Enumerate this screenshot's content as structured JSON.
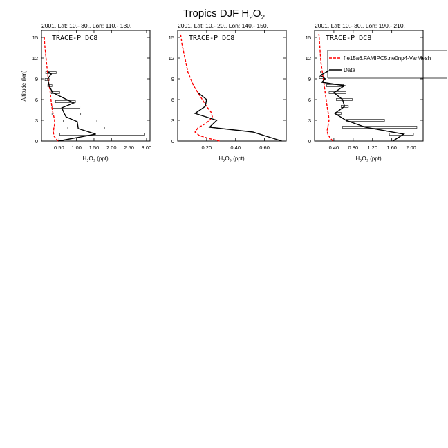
{
  "figure": {
    "title_main": "Tropics DJF H",
    "title_sub": "2",
    "title_main2": "O",
    "title_sub2": "2",
    "ylabel": "Altitude (km)",
    "xlabel_main": "H",
    "xlabel_sub": "2",
    "xlabel_main2": "O",
    "xlabel_sub2": "2",
    "xlabel_unit": " (ppt)",
    "legend_model": "f.e15a6.FAMIPC5.ne0np4-VarMesh",
    "legend_data": "Data",
    "colors": {
      "model": "#ff0000",
      "data": "#000000"
    }
  },
  "chart_data": [
    {
      "type": "line",
      "subtitle": "2001, Lat: 10.- 30., Lon: 110.- 130.",
      "campaign": "TRACE-P DC8",
      "xlim": [
        0.0,
        3.1
      ],
      "ylim": [
        0,
        16
      ],
      "xticks": [
        "0.50",
        "1.00",
        "1.50",
        "2.00",
        "2.50",
        "3.00"
      ],
      "xtick_values": [
        0.5,
        1.0,
        1.5,
        2.0,
        2.5,
        3.0
      ],
      "yticks": [
        "0",
        "3",
        "6",
        "9",
        "12",
        "15"
      ],
      "ytick_values": [
        0,
        3,
        6,
        9,
        12,
        15
      ],
      "model": {
        "x": [
          0.48,
          0.42,
          0.36,
          0.34,
          0.35,
          0.38,
          0.37,
          0.33,
          0.3,
          0.28,
          0.26,
          0.24,
          0.21,
          0.19,
          0.17,
          0.15,
          0.13,
          0.11,
          0.09,
          0.08
        ],
        "y": [
          0.0,
          0.3,
          0.7,
          1.2,
          1.8,
          2.5,
          3.2,
          4.0,
          4.8,
          5.6,
          6.5,
          7.4,
          8.3,
          9.2,
          10.1,
          11.0,
          12.0,
          13.0,
          14.0,
          15.0
        ]
      },
      "data": {
        "x": [
          0.48,
          1.55,
          1.05,
          1.02,
          0.7,
          0.65,
          0.58,
          0.92,
          0.72,
          0.32,
          0.22,
          0.18,
          0.28,
          0.2
        ],
        "y": [
          0.0,
          1.0,
          1.8,
          2.8,
          3.5,
          4.0,
          4.8,
          5.5,
          6.0,
          7.0,
          8.0,
          9.0,
          9.7,
          10.0
        ]
      },
      "bars": [
        {
          "y": 1.0,
          "min": 0.52,
          "max": 2.95
        },
        {
          "y": 1.9,
          "min": 0.75,
          "max": 1.8
        },
        {
          "y": 2.9,
          "min": 0.62,
          "max": 1.58
        },
        {
          "y": 3.9,
          "min": 0.3,
          "max": 1.12
        },
        {
          "y": 4.9,
          "min": 0.3,
          "max": 1.1
        },
        {
          "y": 5.7,
          "min": 0.4,
          "max": 0.97
        },
        {
          "y": 7.0,
          "min": 0.28,
          "max": 0.52
        },
        {
          "y": 8.0,
          "min": 0.18,
          "max": 0.3
        },
        {
          "y": 8.9,
          "min": 0.1,
          "max": 0.22
        },
        {
          "y": 9.9,
          "min": 0.12,
          "max": 0.42
        }
      ]
    },
    {
      "type": "line",
      "subtitle": "2001, Lat: 10.- 20., Lon: 140.- 150.",
      "campaign": "TRACE-P DC8",
      "xlim": [
        0.0,
        0.75
      ],
      "ylim": [
        0,
        16
      ],
      "xticks": [
        "0.20",
        "0.40",
        "0.60"
      ],
      "xtick_values": [
        0.2,
        0.4,
        0.6
      ],
      "yticks": [
        "0",
        "3",
        "6",
        "9",
        "12",
        "15"
      ],
      "ytick_values": [
        0,
        3,
        6,
        9,
        12,
        15
      ],
      "model": {
        "x": [
          0.29,
          0.21,
          0.15,
          0.12,
          0.14,
          0.19,
          0.22,
          0.24,
          0.23,
          0.2,
          0.17,
          0.14,
          0.11,
          0.09,
          0.07,
          0.06,
          0.05,
          0.04,
          0.03,
          0.02
        ],
        "y": [
          0.0,
          0.4,
          0.8,
          1.3,
          1.9,
          2.5,
          3.0,
          3.5,
          4.2,
          5.0,
          6.0,
          7.0,
          8.0,
          9.0,
          10.0,
          11.0,
          12.0,
          13.0,
          14.0,
          15.5
        ]
      },
      "data": {
        "x": [
          0.72,
          0.52,
          0.22,
          0.27,
          0.12,
          0.19,
          0.2,
          0.14
        ],
        "y": [
          0.0,
          1.3,
          2.0,
          3.0,
          4.0,
          5.0,
          6.0,
          7.0
        ]
      },
      "bars": []
    },
    {
      "type": "line",
      "subtitle": "2001, Lat: 10.- 30., Lon: 190.- 210.",
      "campaign": "TRACE-P DC8",
      "xlim": [
        0.0,
        2.25
      ],
      "ylim": [
        0,
        16
      ],
      "xticks": [
        "0.40",
        "0.80",
        "1.20",
        "1.60",
        "2.00"
      ],
      "xtick_values": [
        0.4,
        0.8,
        1.2,
        1.6,
        2.0
      ],
      "yticks": [
        "0",
        "3",
        "6",
        "9",
        "12",
        "15"
      ],
      "ytick_values": [
        0,
        3,
        6,
        9,
        12,
        15
      ],
      "model": {
        "x": [
          0.38,
          0.33,
          0.28,
          0.26,
          0.28,
          0.3,
          0.29,
          0.27,
          0.25,
          0.23,
          0.21,
          0.19,
          0.17,
          0.15,
          0.13,
          0.12,
          0.11,
          0.1,
          0.09
        ],
        "y": [
          0.0,
          0.4,
          0.9,
          1.5,
          2.2,
          3.0,
          3.8,
          4.6,
          5.5,
          6.5,
          7.5,
          8.5,
          9.5,
          10.5,
          11.5,
          12.5,
          13.5,
          14.5,
          15.5
        ]
      },
      "data": {
        "x": [
          1.62,
          1.85,
          1.05,
          0.65,
          0.42,
          0.62,
          0.58,
          0.4,
          0.62,
          0.15,
          0.22,
          0.12,
          0.3
        ],
        "y": [
          0.0,
          1.0,
          2.0,
          3.0,
          4.0,
          5.0,
          6.0,
          7.0,
          8.0,
          8.5,
          9.0,
          9.5,
          10.2
        ]
      },
      "bars": [
        {
          "y": 1.0,
          "min": 1.55,
          "max": 2.05
        },
        {
          "y": 2.0,
          "min": 0.58,
          "max": 2.12
        },
        {
          "y": 3.0,
          "min": 0.65,
          "max": 1.45
        },
        {
          "y": 4.0,
          "min": 0.42,
          "max": 0.55
        },
        {
          "y": 5.0,
          "min": 0.55,
          "max": 0.7
        },
        {
          "y": 6.0,
          "min": 0.45,
          "max": 0.78
        },
        {
          "y": 7.0,
          "min": 0.3,
          "max": 0.65
        },
        {
          "y": 8.0,
          "min": 0.25,
          "max": 0.6
        },
        {
          "y": 9.2,
          "min": 0.1,
          "max": 0.18
        },
        {
          "y": 10.0,
          "min": 0.12,
          "max": 0.32
        }
      ]
    }
  ]
}
